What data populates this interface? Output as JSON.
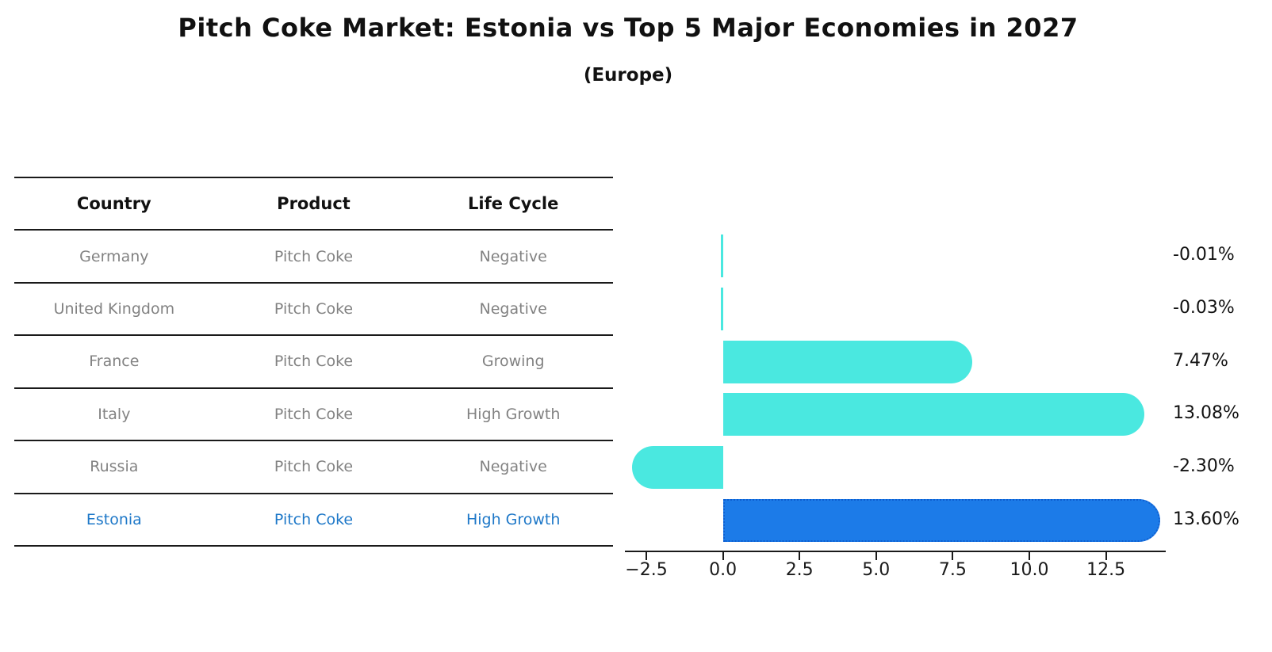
{
  "title": "Pitch Coke Market: Estonia vs Top 5 Major Economies in 2027",
  "subtitle": "(Europe)",
  "table": {
    "headers": [
      "Country",
      "Product",
      "Life Cycle"
    ],
    "rows": [
      [
        "Germany",
        "Pitch Coke",
        "Negative"
      ],
      [
        "United Kingdom",
        "Pitch Coke",
        "Negative"
      ],
      [
        "France",
        "Pitch Coke",
        "Growing"
      ],
      [
        "Italy",
        "Pitch Coke",
        "High Growth"
      ],
      [
        "Russia",
        "Pitch Coke",
        "Negative"
      ],
      [
        "Estonia",
        "Pitch Coke",
        "High Growth"
      ]
    ],
    "highlight_row_index": 5
  },
  "chart_data": {
    "type": "bar",
    "orientation": "horizontal",
    "title": "Pitch Coke Market: Estonia vs Top 5 Major Economies in 2027",
    "subtitle": "(Europe)",
    "categories": [
      "Germany",
      "United Kingdom",
      "France",
      "Italy",
      "Russia",
      "Estonia"
    ],
    "values": [
      -0.01,
      -0.03,
      7.47,
      13.08,
      -2.3,
      13.6
    ],
    "value_labels": [
      "-0.01%",
      "-0.03%",
      "7.47%",
      "13.08%",
      "-2.30%",
      "13.60%"
    ],
    "x_tick_labels": [
      "−2.5",
      "0.0",
      "2.5",
      "5.0",
      "7.5",
      "10.0",
      "12.5"
    ],
    "x_tick_values": [
      -2.5,
      0.0,
      2.5,
      5.0,
      7.5,
      10.0,
      12.5
    ],
    "xlim": [
      -3.2,
      14.4
    ],
    "grid": false,
    "legend": false,
    "highlight_index": 5,
    "bar_color": "#4AE8E0",
    "highlight_bar_color": "#1C7BE8",
    "highlight_text_color": "#1E78C8"
  }
}
